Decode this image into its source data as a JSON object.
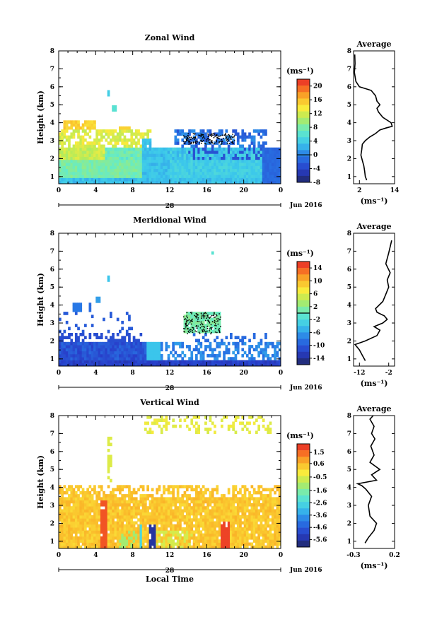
{
  "chart_data": [
    {
      "type": "heatmap",
      "title": "Zonal Wind",
      "ylabel": "Height (km)",
      "unit": "(ms⁻¹)",
      "x_ticks": [
        "0",
        "4",
        "8",
        "12",
        "16",
        "20",
        "0"
      ],
      "y_ticks": [
        "1",
        "2",
        "3",
        "4",
        "5",
        "6",
        "7",
        "8"
      ],
      "xlim": [
        0,
        24
      ],
      "ylim": [
        0.6,
        8
      ],
      "day_label": "28",
      "month_label": "Jun 2016",
      "colorbar": {
        "min": -8,
        "max": 22,
        "ticks": [
          "20",
          "16",
          "12",
          "8",
          "4",
          "0",
          "-4",
          "-8"
        ],
        "contour_at": 0
      },
      "average": {
        "title": "Average",
        "xlabel": "(ms⁻¹)",
        "x_ticks": [
          "2",
          "14"
        ],
        "xlim": [
          0,
          14
        ],
        "profile_x": [
          4.5,
          4.0,
          3.8,
          3.5,
          3.0,
          2.5,
          2.8,
          3.0,
          4.0,
          5.5,
          7.5,
          9.0,
          11.0,
          13.2,
          12.8,
          10.0,
          8.5,
          8.0,
          9.0,
          8.0,
          7.5,
          6.0,
          2.0,
          0.8,
          0.3,
          0.5,
          0.4
        ],
        "profile_y": [
          0.8,
          1.0,
          1.3,
          1.6,
          1.9,
          2.2,
          2.5,
          2.8,
          3.0,
          3.2,
          3.4,
          3.6,
          3.7,
          3.8,
          4.0,
          4.3,
          4.6,
          4.8,
          5.0,
          5.2,
          5.5,
          5.8,
          6.0,
          6.3,
          6.8,
          7.3,
          7.8
        ]
      }
    },
    {
      "type": "heatmap",
      "title": "Meridional Wind",
      "ylabel": "Height (km)",
      "unit": "(ms⁻¹)",
      "x_ticks": [
        "0",
        "4",
        "8",
        "12",
        "16",
        "20",
        "0"
      ],
      "y_ticks": [
        "1",
        "2",
        "3",
        "4",
        "5",
        "6",
        "7",
        "8"
      ],
      "xlim": [
        0,
        24
      ],
      "ylim": [
        0.6,
        8
      ],
      "day_label": "28",
      "month_label": "Jun 2016",
      "colorbar": {
        "min": -16,
        "max": 16,
        "ticks": [
          "14",
          "10",
          "6",
          "2",
          "-2",
          "-6",
          "-10",
          "-14"
        ],
        "contour_at": 0
      },
      "average": {
        "title": "Average",
        "xlabel": "(ms⁻¹)",
        "x_ticks": [
          "-12",
          "-2"
        ],
        "xlim": [
          -14,
          0
        ],
        "profile_x": [
          -10.0,
          -11.0,
          -12.0,
          -13.5,
          -10.0,
          -6.0,
          -5.0,
          -7.0,
          -4.0,
          -2.5,
          -3.5,
          -6.0,
          -6.5,
          -4.0,
          -3.0,
          -2.0,
          -2.5,
          -1.5,
          -3.0,
          -2.0,
          -1.0
        ],
        "profile_y": [
          0.9,
          1.2,
          1.5,
          1.8,
          2.0,
          2.3,
          2.6,
          2.8,
          3.0,
          3.2,
          3.4,
          3.6,
          3.8,
          4.2,
          4.6,
          5.0,
          5.4,
          5.8,
          6.3,
          6.9,
          7.6
        ]
      }
    },
    {
      "type": "heatmap",
      "title": "Vertical Wind",
      "ylabel": "Height (km)",
      "xlabel": "Local Time",
      "unit": "(ms⁻¹)",
      "x_ticks": [
        "0",
        "4",
        "8",
        "12",
        "16",
        "20",
        "0"
      ],
      "y_ticks": [
        "1",
        "2",
        "3",
        "4",
        "5",
        "6",
        "7",
        "8"
      ],
      "xlim": [
        0,
        24
      ],
      "ylim": [
        0.6,
        8
      ],
      "day_label": "28",
      "month_label": "Jun 2016",
      "colorbar": {
        "min": -6.2,
        "max": 2.2,
        "ticks": [
          "1.5",
          "0.6",
          "-0.5",
          "-1.6",
          "-2.6",
          "-3.6",
          "-4.6",
          "-5.6"
        ]
      },
      "average": {
        "title": "Average",
        "xlabel": "(ms⁻¹)",
        "x_ticks": [
          "-0.3",
          "0.2"
        ],
        "xlim": [
          -0.3,
          0.2
        ],
        "profile_x": [
          -0.16,
          -0.12,
          -0.05,
          -0.02,
          -0.1,
          -0.12,
          -0.08,
          -0.15,
          -0.2,
          -0.25,
          -0.02,
          -0.08,
          0.02,
          -0.1,
          -0.05,
          -0.09,
          -0.04,
          -0.08,
          -0.05,
          -0.1,
          -0.06
        ],
        "profile_y": [
          0.9,
          1.2,
          1.6,
          2.0,
          2.4,
          3.0,
          3.5,
          3.9,
          4.1,
          4.2,
          4.4,
          4.7,
          5.0,
          5.4,
          5.8,
          6.3,
          6.7,
          7.0,
          7.4,
          7.8,
          8.0
        ]
      }
    }
  ]
}
